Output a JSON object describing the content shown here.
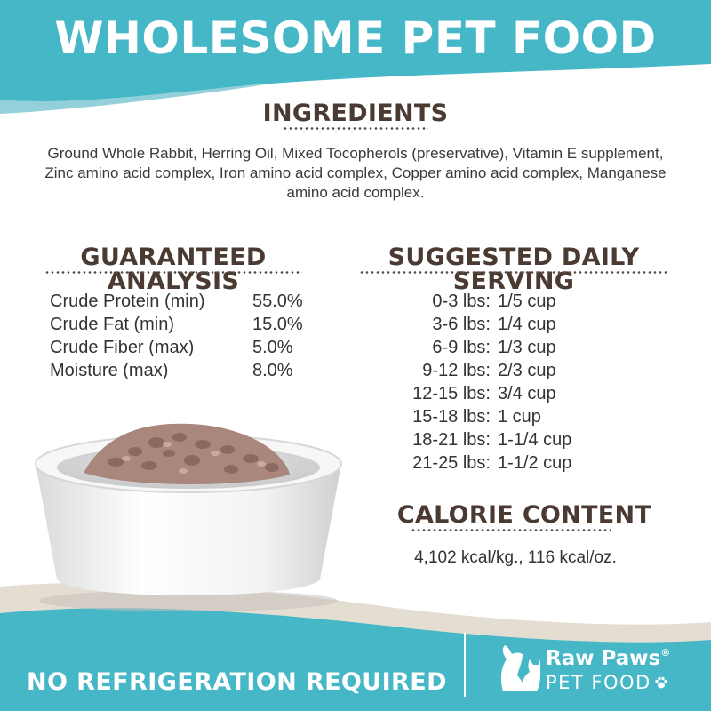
{
  "colors": {
    "teal": "#45b7c7",
    "teal_dark": "#3aa9ba",
    "cream": "#e4ddd2",
    "heading_brown": "#4a3a32",
    "text": "#333333",
    "white": "#ffffff"
  },
  "headline": "WHOLESOME PET FOOD",
  "ingredients": {
    "heading": "INGREDIENTS",
    "text": "Ground Whole Rabbit, Herring Oil, Mixed Tocopherols (preservative), Vitamin E supplement, Zinc amino acid complex, Iron amino acid complex, Copper amino acid complex, Manganese amino acid complex."
  },
  "guaranteed_analysis": {
    "heading": "GUARANTEED ANALYSIS",
    "rows": [
      {
        "name": "Crude Protein (min)",
        "value": "55.0%"
      },
      {
        "name": "Crude Fat (min)",
        "value": "15.0%"
      },
      {
        "name": "Crude Fiber (max)",
        "value": "5.0%"
      },
      {
        "name": "Moisture (max)",
        "value": "8.0%"
      }
    ]
  },
  "suggested_daily_serving": {
    "heading": "SUGGESTED DAILY SERVING",
    "rows": [
      {
        "range": "0-3 lbs:",
        "amount": "1/5 cup"
      },
      {
        "range": "3-6 lbs:",
        "amount": "1/4 cup"
      },
      {
        "range": "6-9 lbs:",
        "amount": "1/3 cup"
      },
      {
        "range": "9-12 lbs:",
        "amount": "2/3 cup"
      },
      {
        "range": "12-15 lbs:",
        "amount": "3/4 cup"
      },
      {
        "range": "15-18 lbs:",
        "amount": "1 cup"
      },
      {
        "range": "18-21 lbs:",
        "amount": "1-1/4 cup"
      },
      {
        "range": "21-25 lbs:",
        "amount": "1-1/2 cup"
      }
    ]
  },
  "calorie_content": {
    "heading": "CALORIE CONTENT",
    "text": "4,102 kcal/kg., 116 kcal/oz."
  },
  "footer": {
    "tagline": "NO REFRIGERATION REQUIRED",
    "brand_name": "Raw Paws",
    "brand_reg": "®",
    "brand_sub": "PET FOOD"
  },
  "icons": {
    "brand_logo": "dog-and-cat-icon",
    "paw": "paw-icon",
    "bowl": "food-bowl-icon"
  }
}
